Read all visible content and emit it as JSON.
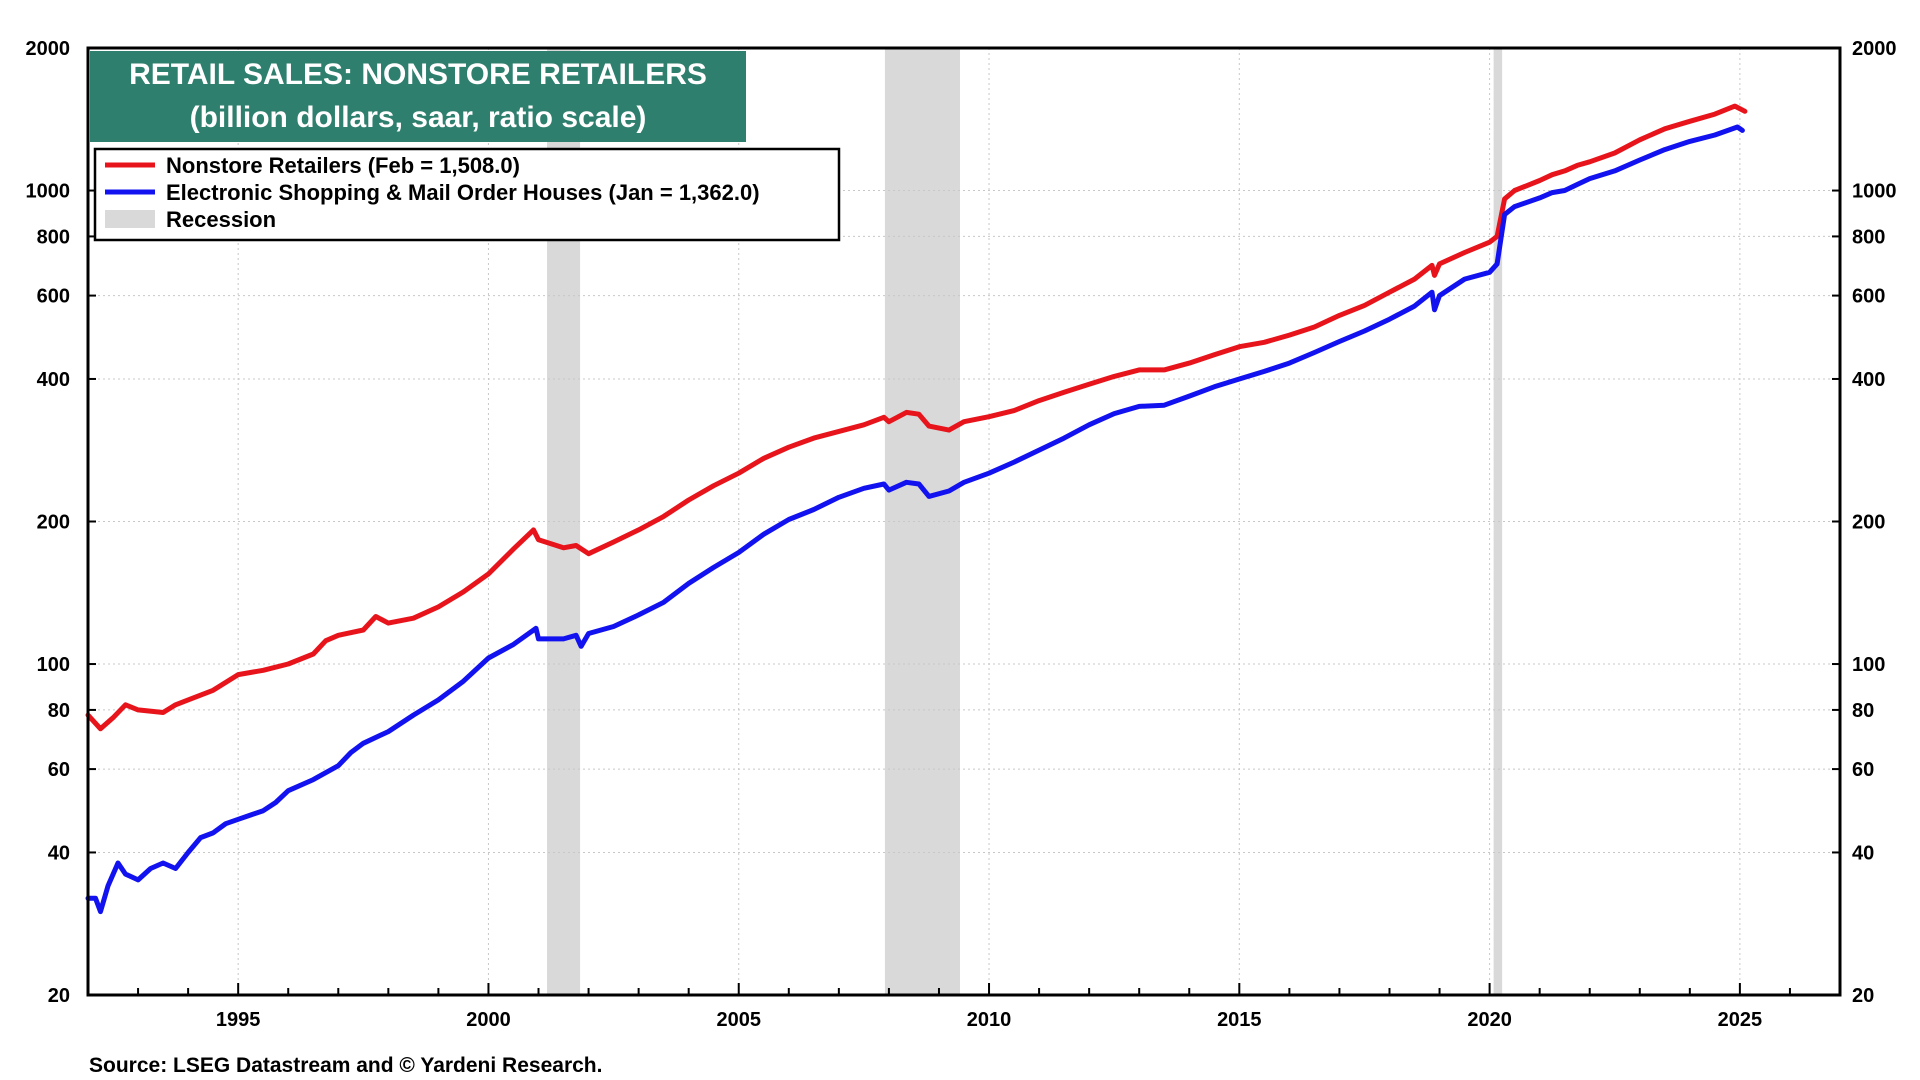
{
  "chart_data": {
    "type": "line",
    "title": "RETAIL SALES: NONSTORE RETAILERS",
    "subtitle": "(billion dollars, saar, ratio scale)",
    "source": "Source: LSEG Datastream and © Yardeni Research.",
    "y_scale": "log",
    "ylim": [
      20,
      2000
    ],
    "xlim": [
      1992.0,
      2027.0
    ],
    "y_ticks": [
      20,
      40,
      60,
      80,
      100,
      200,
      400,
      600,
      800,
      1000,
      2000
    ],
    "y_tick_labels": [
      "20",
      "40",
      "60",
      "80",
      "100",
      "200",
      "400",
      "600",
      "800",
      "1000",
      "2000"
    ],
    "x_ticks": [
      1995,
      2000,
      2005,
      2010,
      2015,
      2020,
      2025
    ],
    "x_tick_labels": [
      "1995",
      "2000",
      "2005",
      "2010",
      "2015",
      "2020",
      "2025"
    ],
    "grid": true,
    "legend_position": "top-left",
    "colors": {
      "nonstore": "#e8141b",
      "electronic": "#1212f0",
      "recession": "#d9d9d9",
      "title_bg": "#2f7f6e"
    },
    "recessions": [
      {
        "start": 2001.17,
        "end": 2001.83
      },
      {
        "start": 2007.92,
        "end": 2009.42
      },
      {
        "start": 2020.08,
        "end": 2020.25
      }
    ],
    "series": [
      {
        "name": "Nonstore Retailers (Feb = 1,508.0)",
        "key": "nonstore",
        "points": [
          [
            1992.0,
            78
          ],
          [
            1992.25,
            73
          ],
          [
            1992.5,
            77
          ],
          [
            1992.75,
            82
          ],
          [
            1993.0,
            80
          ],
          [
            1993.5,
            79
          ],
          [
            1993.75,
            82
          ],
          [
            1994.0,
            84
          ],
          [
            1994.5,
            88
          ],
          [
            1995.0,
            95
          ],
          [
            1995.5,
            97
          ],
          [
            1996.0,
            100
          ],
          [
            1996.5,
            105
          ],
          [
            1996.75,
            112
          ],
          [
            1997.0,
            115
          ],
          [
            1997.5,
            118
          ],
          [
            1997.75,
            126
          ],
          [
            1998.0,
            122
          ],
          [
            1998.5,
            125
          ],
          [
            1999.0,
            132
          ],
          [
            1999.5,
            142
          ],
          [
            2000.0,
            155
          ],
          [
            2000.5,
            175
          ],
          [
            2000.9,
            192
          ],
          [
            2001.0,
            183
          ],
          [
            2001.5,
            176
          ],
          [
            2001.75,
            178
          ],
          [
            2002.0,
            171
          ],
          [
            2002.5,
            181
          ],
          [
            2003.0,
            192
          ],
          [
            2003.5,
            205
          ],
          [
            2004.0,
            222
          ],
          [
            2004.5,
            238
          ],
          [
            2005.0,
            253
          ],
          [
            2005.5,
            272
          ],
          [
            2006.0,
            287
          ],
          [
            2006.5,
            300
          ],
          [
            2007.0,
            310
          ],
          [
            2007.5,
            320
          ],
          [
            2007.9,
            332
          ],
          [
            2008.0,
            325
          ],
          [
            2008.35,
            340
          ],
          [
            2008.6,
            337
          ],
          [
            2008.8,
            318
          ],
          [
            2009.2,
            312
          ],
          [
            2009.5,
            325
          ],
          [
            2010.0,
            333
          ],
          [
            2010.5,
            343
          ],
          [
            2011.0,
            360
          ],
          [
            2011.5,
            375
          ],
          [
            2012.0,
            390
          ],
          [
            2012.5,
            405
          ],
          [
            2013.0,
            418
          ],
          [
            2013.5,
            418
          ],
          [
            2014.0,
            432
          ],
          [
            2014.5,
            450
          ],
          [
            2015.0,
            468
          ],
          [
            2015.5,
            478
          ],
          [
            2016.0,
            495
          ],
          [
            2016.5,
            515
          ],
          [
            2017.0,
            545
          ],
          [
            2017.5,
            572
          ],
          [
            2018.0,
            610
          ],
          [
            2018.5,
            650
          ],
          [
            2018.85,
            695
          ],
          [
            2018.9,
            662
          ],
          [
            2019.0,
            700
          ],
          [
            2019.5,
            740
          ],
          [
            2020.0,
            778
          ],
          [
            2020.15,
            800
          ],
          [
            2020.3,
            960
          ],
          [
            2020.5,
            1000
          ],
          [
            2021.0,
            1050
          ],
          [
            2021.25,
            1080
          ],
          [
            2021.5,
            1100
          ],
          [
            2021.75,
            1130
          ],
          [
            2022.0,
            1150
          ],
          [
            2022.5,
            1200
          ],
          [
            2023.0,
            1280
          ],
          [
            2023.5,
            1350
          ],
          [
            2024.0,
            1400
          ],
          [
            2024.5,
            1450
          ],
          [
            2024.9,
            1508
          ],
          [
            2025.1,
            1470
          ]
        ]
      },
      {
        "name": "Electronic Shopping & Mail Order Houses (Jan = 1,362.0)",
        "key": "electronic",
        "points": [
          [
            1992.0,
            32
          ],
          [
            1992.15,
            32
          ],
          [
            1992.25,
            30
          ],
          [
            1992.4,
            34
          ],
          [
            1992.6,
            38
          ],
          [
            1992.75,
            36
          ],
          [
            1993.0,
            35
          ],
          [
            1993.25,
            37
          ],
          [
            1993.5,
            38
          ],
          [
            1993.75,
            37
          ],
          [
            1994.0,
            40
          ],
          [
            1994.25,
            43
          ],
          [
            1994.5,
            44
          ],
          [
            1994.75,
            46
          ],
          [
            1995.0,
            47
          ],
          [
            1995.25,
            48
          ],
          [
            1995.5,
            49
          ],
          [
            1995.75,
            51
          ],
          [
            1996.0,
            54
          ],
          [
            1996.5,
            57
          ],
          [
            1997.0,
            61
          ],
          [
            1997.25,
            65
          ],
          [
            1997.5,
            68
          ],
          [
            1998.0,
            72
          ],
          [
            1998.5,
            78
          ],
          [
            1999.0,
            84
          ],
          [
            1999.5,
            92
          ],
          [
            2000.0,
            103
          ],
          [
            2000.5,
            110
          ],
          [
            2000.95,
            119
          ],
          [
            2001.0,
            113
          ],
          [
            2001.5,
            113
          ],
          [
            2001.75,
            115
          ],
          [
            2001.85,
            109
          ],
          [
            2002.0,
            116
          ],
          [
            2002.5,
            120
          ],
          [
            2003.0,
            127
          ],
          [
            2003.5,
            135
          ],
          [
            2004.0,
            148
          ],
          [
            2004.5,
            160
          ],
          [
            2005.0,
            172
          ],
          [
            2005.5,
            188
          ],
          [
            2006.0,
            202
          ],
          [
            2006.5,
            212
          ],
          [
            2007.0,
            225
          ],
          [
            2007.5,
            235
          ],
          [
            2007.9,
            240
          ],
          [
            2008.0,
            233
          ],
          [
            2008.35,
            242
          ],
          [
            2008.6,
            240
          ],
          [
            2008.8,
            226
          ],
          [
            2009.2,
            232
          ],
          [
            2009.5,
            242
          ],
          [
            2010.0,
            253
          ],
          [
            2010.5,
            267
          ],
          [
            2011.0,
            283
          ],
          [
            2011.5,
            300
          ],
          [
            2012.0,
            320
          ],
          [
            2012.5,
            338
          ],
          [
            2013.0,
            350
          ],
          [
            2013.5,
            352
          ],
          [
            2014.0,
            368
          ],
          [
            2014.5,
            385
          ],
          [
            2015.0,
            400
          ],
          [
            2015.5,
            415
          ],
          [
            2016.0,
            432
          ],
          [
            2016.5,
            455
          ],
          [
            2017.0,
            480
          ],
          [
            2017.5,
            505
          ],
          [
            2018.0,
            535
          ],
          [
            2018.5,
            570
          ],
          [
            2018.85,
            610
          ],
          [
            2018.9,
            560
          ],
          [
            2019.0,
            600
          ],
          [
            2019.5,
            650
          ],
          [
            2020.0,
            672
          ],
          [
            2020.15,
            700
          ],
          [
            2020.3,
            890
          ],
          [
            2020.5,
            925
          ],
          [
            2021.0,
            965
          ],
          [
            2021.25,
            990
          ],
          [
            2021.5,
            1000
          ],
          [
            2021.75,
            1030
          ],
          [
            2022.0,
            1060
          ],
          [
            2022.5,
            1100
          ],
          [
            2023.0,
            1160
          ],
          [
            2023.5,
            1220
          ],
          [
            2024.0,
            1270
          ],
          [
            2024.5,
            1310
          ],
          [
            2024.95,
            1362
          ],
          [
            2025.05,
            1340
          ]
        ]
      }
    ],
    "legend": {
      "entries": [
        {
          "label": "Nonstore Retailers (Feb = 1,508.0)",
          "key": "nonstore"
        },
        {
          "label": "Electronic Shopping & Mail Order Houses (Jan = 1,362.0)",
          "key": "electronic"
        },
        {
          "label": "Recession",
          "key": "recession"
        }
      ]
    }
  }
}
